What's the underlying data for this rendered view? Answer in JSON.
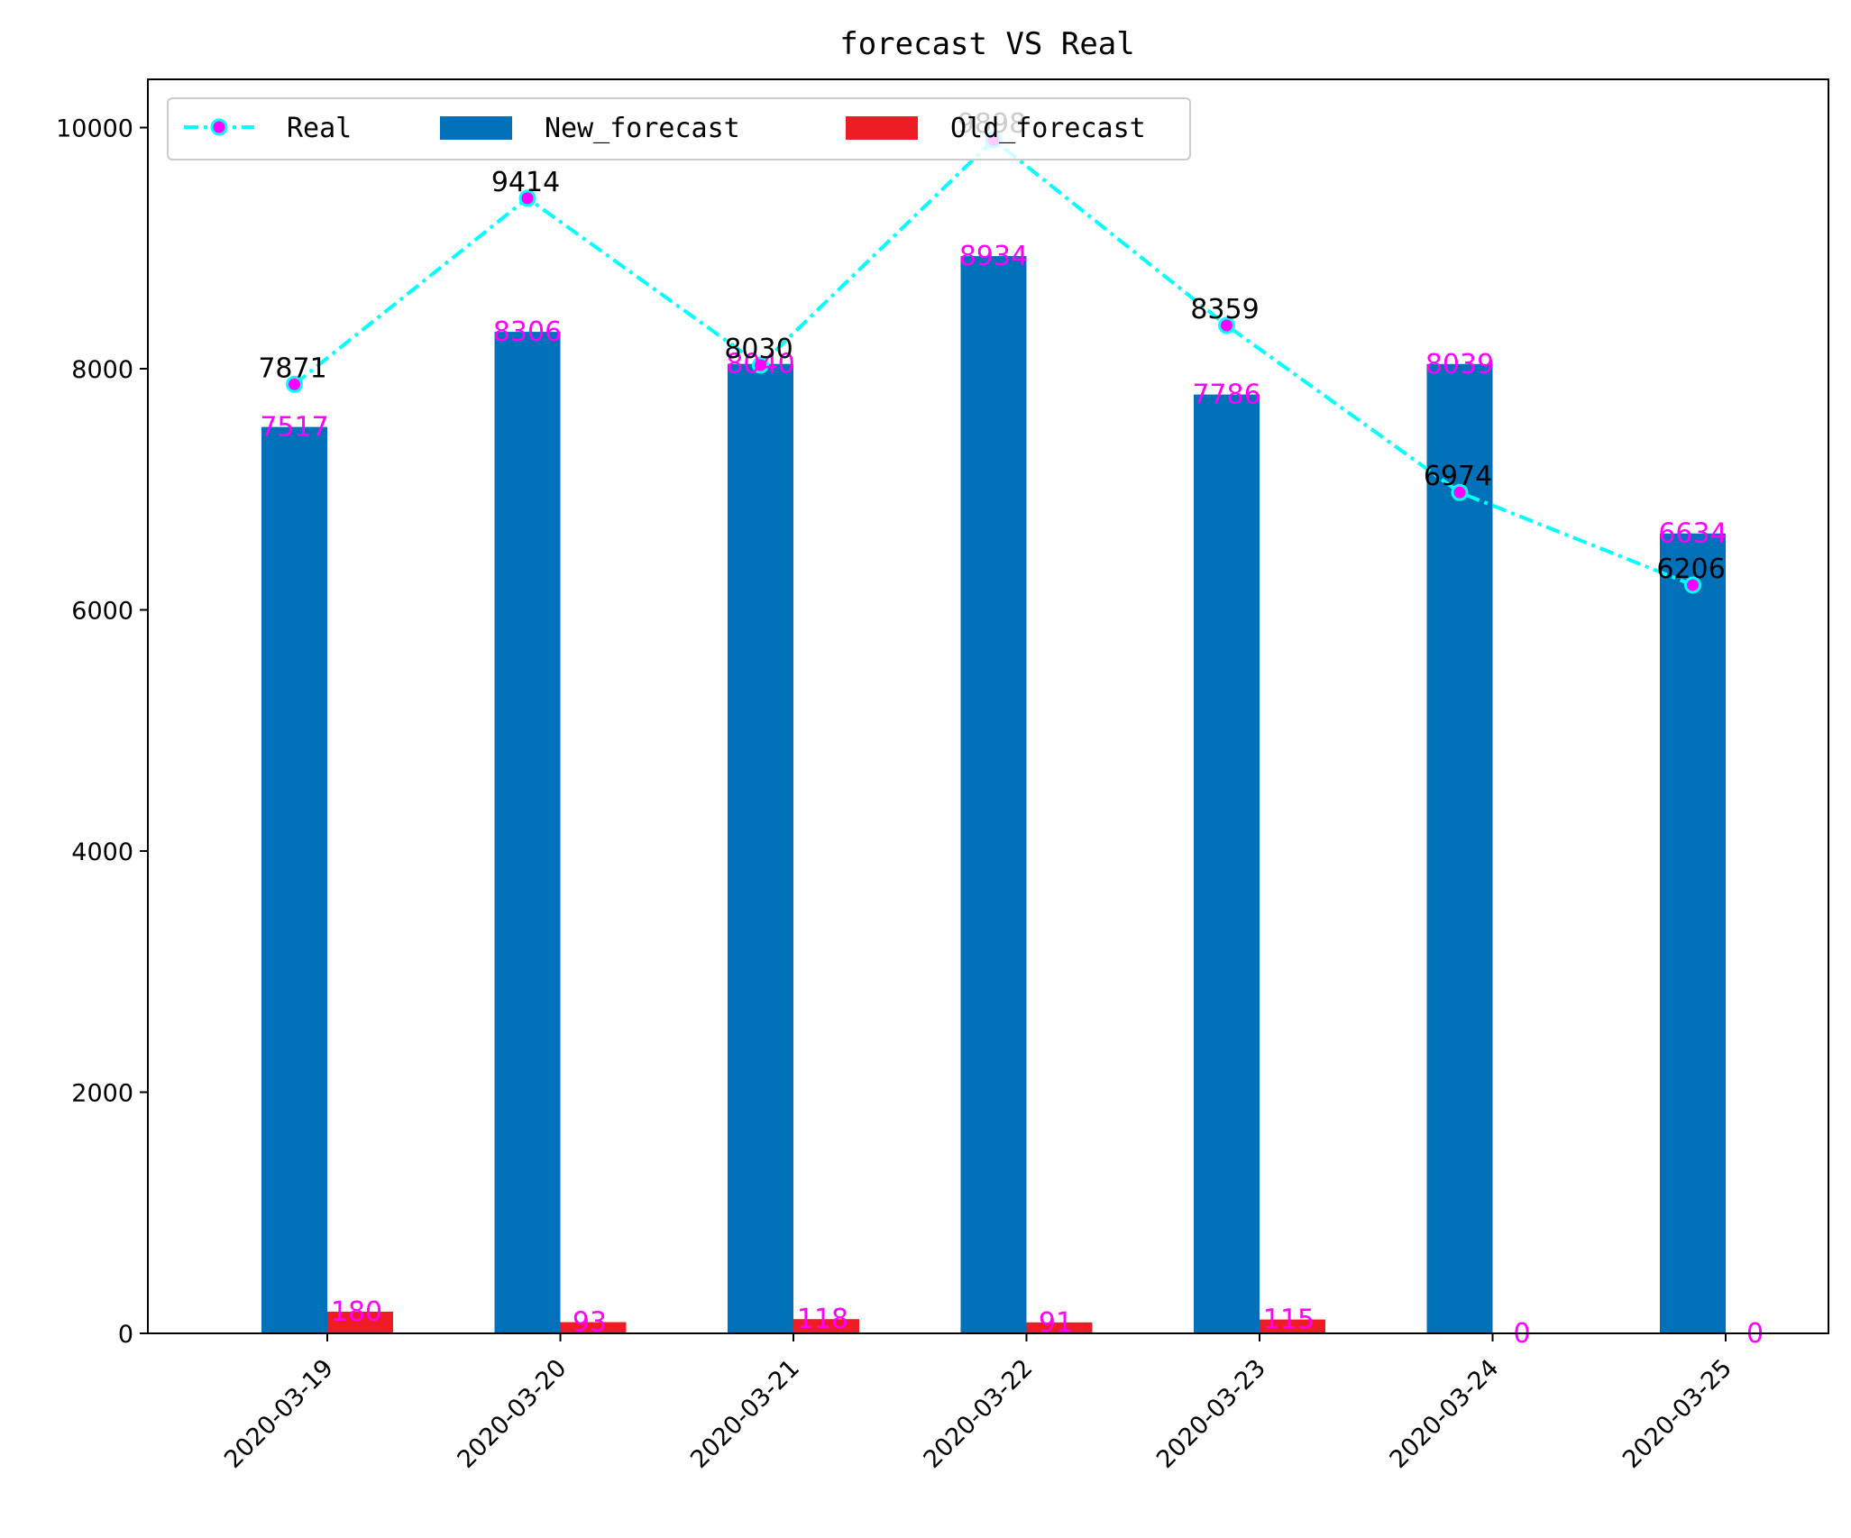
{
  "chart_data": {
    "type": "bar",
    "title": "forecast VS Real",
    "categories": [
      "2020-03-19",
      "2020-03-20",
      "2020-03-21",
      "2020-03-22",
      "2020-03-23",
      "2020-03-24",
      "2020-03-25"
    ],
    "series": [
      {
        "name": "Real",
        "kind": "line",
        "values": [
          7871,
          9414,
          8030,
          9898,
          8359,
          6974,
          6206
        ],
        "color": "#00ffff",
        "marker_color": "#ff00ff"
      },
      {
        "name": "New_forecast",
        "kind": "bar",
        "values": [
          7517,
          8306,
          8040,
          8934,
          7786,
          8039,
          6634
        ],
        "color": "#0070b8"
      },
      {
        "name": "Old_forecast",
        "kind": "bar",
        "values": [
          180,
          93,
          118,
          91,
          115,
          0,
          0
        ],
        "color": "#ee1c25"
      }
    ],
    "y_ticks": [
      0,
      2000,
      4000,
      6000,
      8000,
      10000
    ],
    "ylim": [
      0,
      10400
    ],
    "legend_position": "top-left",
    "grid": false,
    "xlabel": "",
    "ylabel": ""
  }
}
